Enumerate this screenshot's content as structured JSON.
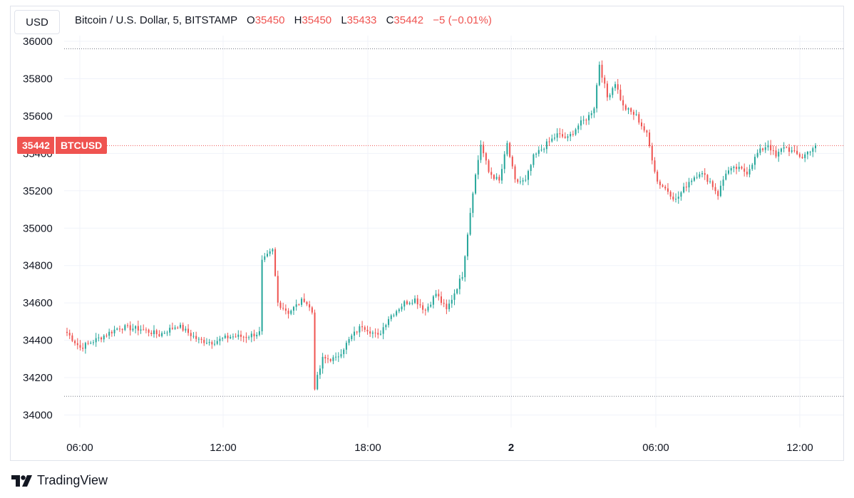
{
  "header": {
    "currency": "USD",
    "symbol_title": "Bitcoin / U.S. Dollar, 5, BITSTAMP",
    "ohlc": [
      {
        "label": "O",
        "value": "35450"
      },
      {
        "label": "H",
        "value": "35450"
      },
      {
        "label": "L",
        "value": "35433"
      },
      {
        "label": "C",
        "value": "35442"
      }
    ],
    "change": "−5 (−0.01%)"
  },
  "price_badge": {
    "price": "35442",
    "symbol": "BTCUSD"
  },
  "footer": {
    "brand": "TradingView"
  },
  "colors": {
    "up": "#26a69a",
    "down": "#ef5350",
    "grid": "#f0f3fa",
    "text": "#131722"
  },
  "chart_data": {
    "type": "candlestick",
    "ylim": [
      33900,
      36000
    ],
    "yticks": [
      34000,
      34200,
      34400,
      34600,
      34800,
      35000,
      35200,
      35400,
      35600,
      35800,
      36000
    ],
    "xticks": [
      "06:00",
      "12:00",
      "18:00",
      "2",
      "06:00",
      "12:00"
    ],
    "current_price": 35442,
    "high_line": 35960,
    "low_line": 34100,
    "waypoints": [
      [
        0,
        34440
      ],
      [
        5,
        34360
      ],
      [
        12,
        34410
      ],
      [
        20,
        34470
      ],
      [
        28,
        34460
      ],
      [
        35,
        34430
      ],
      [
        42,
        34480
      ],
      [
        50,
        34400
      ],
      [
        55,
        34390
      ],
      [
        62,
        34420
      ],
      [
        68,
        34420
      ],
      [
        73,
        34440
      ],
      [
        74,
        34820
      ],
      [
        78,
        34880
      ],
      [
        80,
        34600
      ],
      [
        84,
        34550
      ],
      [
        90,
        34620
      ],
      [
        93,
        34550
      ],
      [
        94,
        34150
      ],
      [
        97,
        34300
      ],
      [
        102,
        34300
      ],
      [
        108,
        34420
      ],
      [
        112,
        34480
      ],
      [
        118,
        34420
      ],
      [
        122,
        34520
      ],
      [
        128,
        34600
      ],
      [
        132,
        34620
      ],
      [
        136,
        34560
      ],
      [
        140,
        34650
      ],
      [
        144,
        34560
      ],
      [
        150,
        34750
      ],
      [
        154,
        35200
      ],
      [
        157,
        35450
      ],
      [
        160,
        35300
      ],
      [
        164,
        35250
      ],
      [
        167,
        35450
      ],
      [
        170,
        35250
      ],
      [
        174,
        35250
      ],
      [
        177,
        35380
      ],
      [
        182,
        35450
      ],
      [
        186,
        35500
      ],
      [
        190,
        35480
      ],
      [
        194,
        35550
      ],
      [
        198,
        35600
      ],
      [
        200,
        35650
      ],
      [
        202,
        35880
      ],
      [
        205,
        35700
      ],
      [
        208,
        35780
      ],
      [
        211,
        35650
      ],
      [
        216,
        35600
      ],
      [
        220,
        35500
      ],
      [
        224,
        35250
      ],
      [
        228,
        35200
      ],
      [
        231,
        35150
      ],
      [
        236,
        35250
      ],
      [
        240,
        35300
      ],
      [
        244,
        35250
      ],
      [
        247,
        35180
      ],
      [
        250,
        35300
      ],
      [
        254,
        35320
      ],
      [
        258,
        35300
      ],
      [
        262,
        35400
      ],
      [
        266,
        35450
      ],
      [
        269,
        35380
      ],
      [
        272,
        35440
      ],
      [
        276,
        35400
      ],
      [
        279,
        35380
      ],
      [
        282,
        35420
      ],
      [
        284,
        35442
      ]
    ]
  }
}
